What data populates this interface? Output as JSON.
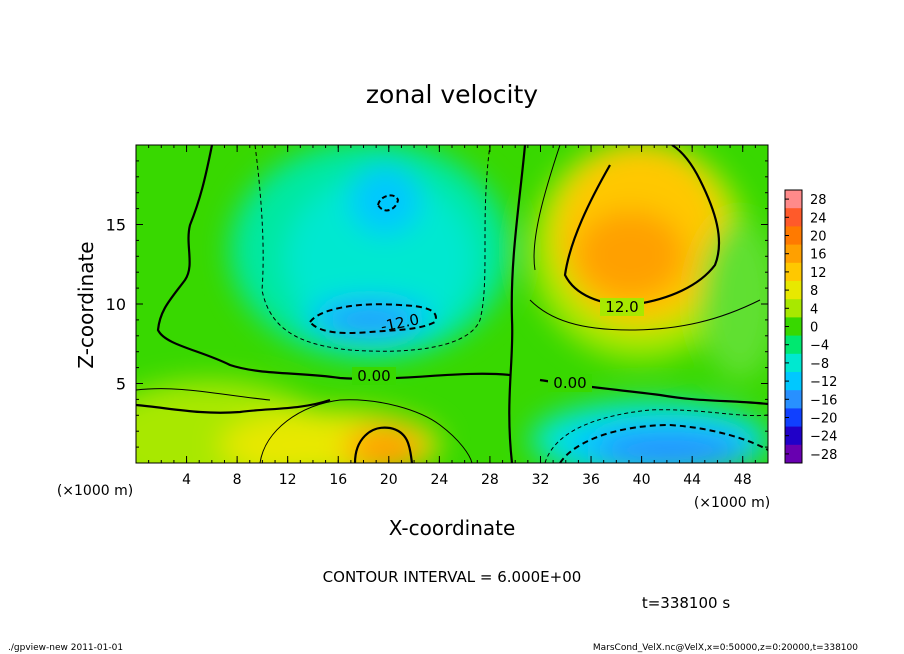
{
  "chart_data": {
    "type": "heatmap",
    "title": "zonal velocity",
    "xlabel": "X-coordinate",
    "ylabel": "Z-coordinate",
    "x_unit_label": "(×1000 m)",
    "y_unit_label": "(×1000 m)",
    "xlim": [
      0,
      50
    ],
    "ylim": [
      0,
      20
    ],
    "x_ticks": [
      "4",
      "8",
      "12",
      "16",
      "20",
      "24",
      "28",
      "32",
      "36",
      "40",
      "44",
      "48"
    ],
    "x_tick_values": [
      4,
      8,
      12,
      16,
      20,
      24,
      28,
      32,
      36,
      40,
      44,
      48
    ],
    "y_ticks": [
      "5",
      "10",
      "15"
    ],
    "y_tick_values": [
      5,
      10,
      15
    ],
    "colorbar": {
      "labels": [
        "28",
        "24",
        "20",
        "16",
        "12",
        "8",
        "4",
        "0",
        "−4",
        "−8",
        "−12",
        "−16",
        "−20",
        "−24",
        "−28"
      ],
      "values": [
        28,
        24,
        20,
        16,
        12,
        8,
        4,
        0,
        -4,
        -8,
        -12,
        -16,
        -20,
        -24,
        -28
      ],
      "colors": [
        "#ff8a8a",
        "#ff5a2a",
        "#ff7a00",
        "#ffa000",
        "#ffc800",
        "#e8e800",
        "#a8e800",
        "#38d800",
        "#00e870",
        "#00e8d0",
        "#00c8ff",
        "#2890ff",
        "#1040ff",
        "#2000c8",
        "#6800b0"
      ]
    },
    "features": [
      {
        "label": "12.0",
        "value": 12.0,
        "region": "maximum",
        "center": [
          39,
          13
        ]
      },
      {
        "label": "-12.0",
        "value": -12.0,
        "region": "minimum",
        "center": [
          18,
          9.5
        ]
      },
      {
        "label": "0.00",
        "value": 0.0,
        "region": "zero line",
        "center": [
          18,
          5.5
        ]
      },
      {
        "label": "0.00",
        "value": 0.0,
        "region": "zero line",
        "center": [
          34,
          5
        ]
      }
    ],
    "grid": false
  },
  "contour_interval_label": "CONTOUR INTERVAL = 6.000E+00",
  "time_label": "t=338100 s",
  "footer_left": "./gpview-new   2011-01-01",
  "footer_right": "MarsCond_VelX.nc@VelX,x=0:50000,z=0:20000,t=338100"
}
